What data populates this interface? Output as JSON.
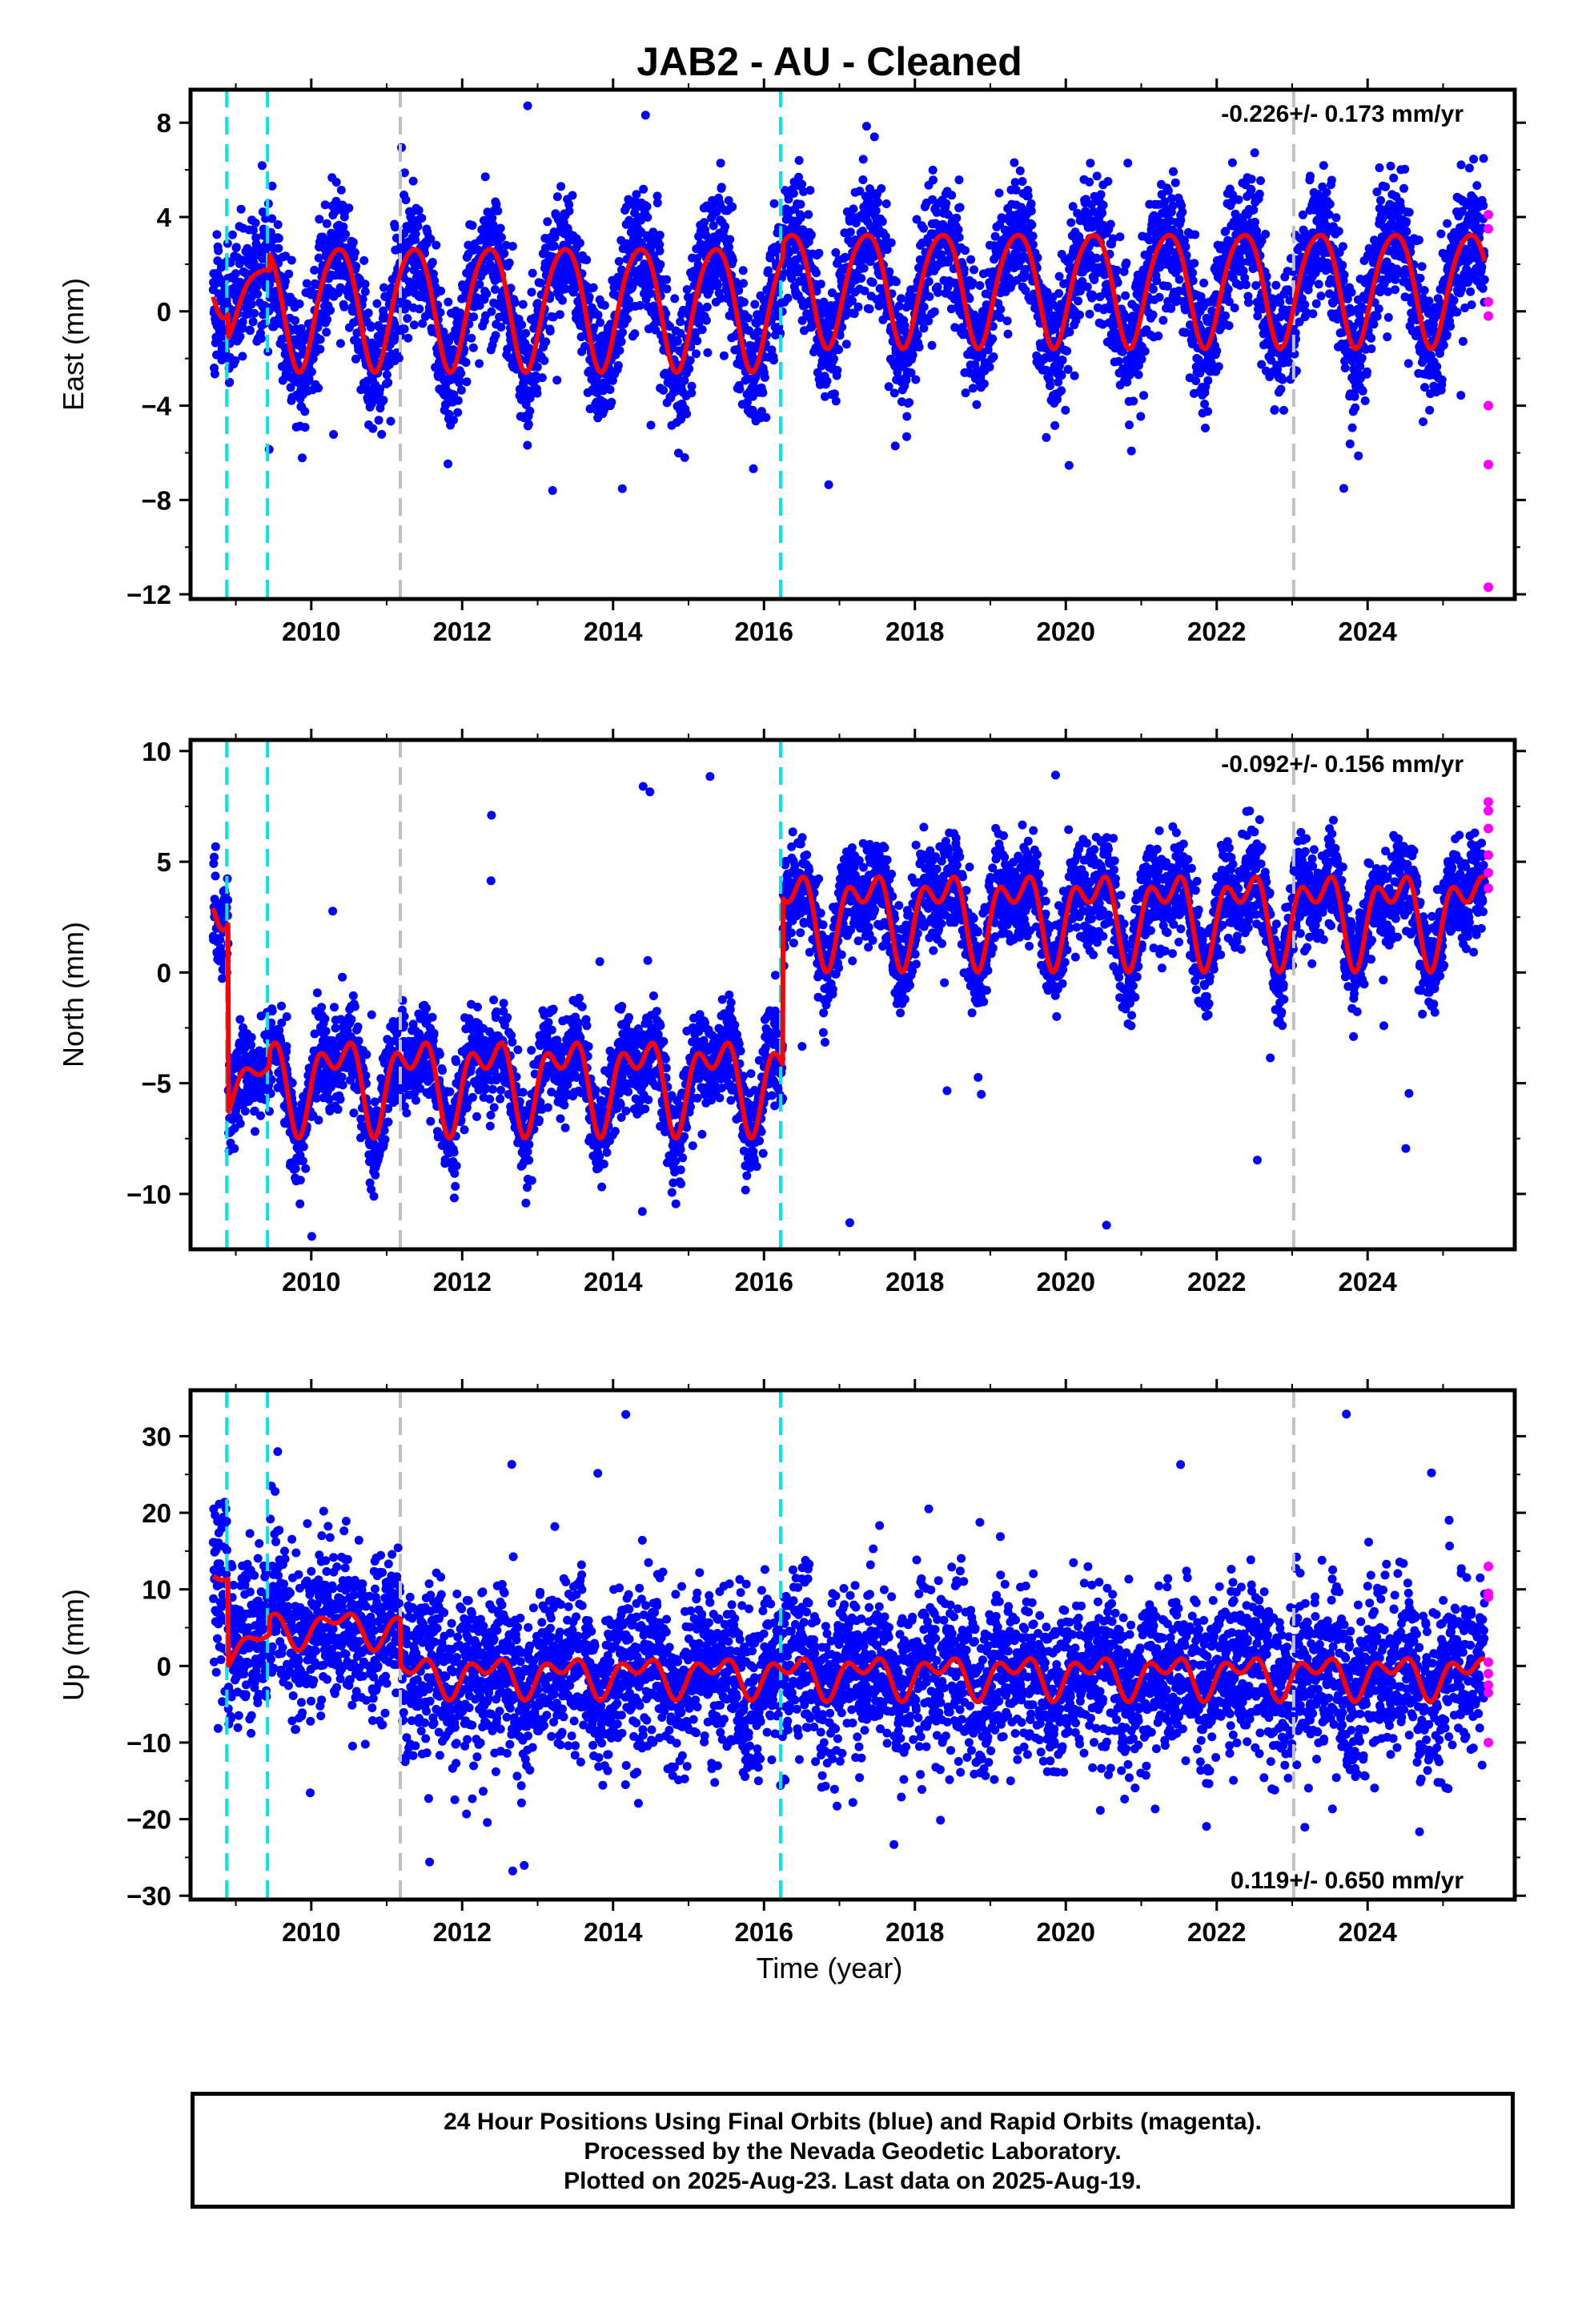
{
  "title": "JAB2  - AU - Cleaned",
  "xlabel": "Time (year)",
  "caption": {
    "line1": "24 Hour Positions Using Final Orbits (blue) and Rapid Orbits (magenta).",
    "line2": "Processed by the Nevada Geodetic Laboratory.",
    "line3": "Plotted on 2025-Aug-23. Last data on 2025-Aug-19."
  },
  "colors": {
    "final_orbits": "#0000ff",
    "rapid_orbits": "#ff00ff",
    "model": "#ff0000",
    "equipment_change": "#00e5ee",
    "earthquake": "#c0c0c0",
    "frame": "#000000"
  },
  "chart_data": [
    {
      "type": "scatter",
      "panel": "east",
      "ylabel": "East (mm)",
      "rate_label": "-0.226+/- 0.173 mm/yr",
      "xlim": [
        2008.4,
        2025.95
      ],
      "ylim": [
        -12.2,
        9.4
      ],
      "yticks": [
        8,
        4,
        0,
        -4,
        -8,
        -12
      ],
      "xticks": [
        2010,
        2012,
        2014,
        2016,
        2018,
        2020,
        2022,
        2024
      ],
      "series": [
        {
          "role": "final-orbits",
          "start": 2008.7,
          "end": 2025.55,
          "n_points": 5200,
          "scatter_sd": 1.35,
          "outlier_range": [
            -8,
            9
          ]
        },
        {
          "role": "rapid-orbits",
          "points": [
            [
              2025.6,
              4.1
            ],
            [
              2025.6,
              3.5
            ],
            [
              2025.6,
              0.4
            ],
            [
              2025.6,
              -0.2
            ],
            [
              2025.6,
              -4.0
            ],
            [
              2025.6,
              -6.5
            ],
            [
              2025.6,
              -11.7
            ]
          ]
        }
      ],
      "model": {
        "breakpoints": [
          2008.9,
          2009.45,
          2016.25
        ],
        "segments": [
          {
            "from": 2008.7,
            "to": 2008.9,
            "offset": 1.5,
            "annual_amp": 1.5,
            "semiannual_amp": 0.3
          },
          {
            "from": 2008.9,
            "to": 2009.45,
            "offset": 0.5,
            "annual_amp": 1.5,
            "semiannual_amp": 0.3
          },
          {
            "from": 2009.45,
            "to": 2016.25,
            "offset": 0.3,
            "annual_amp": 2.6,
            "semiannual_amp": 0.3
          },
          {
            "from": 2016.25,
            "to": 2025.55,
            "offset": 1.1,
            "annual_amp": 2.4,
            "semiannual_amp": 0.3
          }
        ]
      },
      "vlines_equipment": [
        2008.88,
        2009.42,
        2016.22
      ],
      "vlines_earthquake": [
        2011.18,
        2023.02
      ]
    },
    {
      "type": "scatter",
      "panel": "north",
      "ylabel": "North (mm)",
      "rate_label": "-0.092+/- 0.156 mm/yr",
      "xlim": [
        2008.4,
        2025.95
      ],
      "ylim": [
        -12.5,
        10.5
      ],
      "yticks": [
        10,
        5,
        0,
        -5,
        -10
      ],
      "xticks": [
        2010,
        2012,
        2014,
        2016,
        2018,
        2020,
        2022,
        2024
      ],
      "series": [
        {
          "role": "final-orbits",
          "start": 2008.7,
          "end": 2025.55,
          "n_points": 5200,
          "scatter_sd": 1.1,
          "outlier_range": [
            -12,
            9
          ]
        },
        {
          "role": "rapid-orbits",
          "points": [
            [
              2025.6,
              7.7
            ],
            [
              2025.6,
              7.3
            ],
            [
              2025.6,
              6.5
            ],
            [
              2025.6,
              5.3
            ],
            [
              2025.6,
              4.5
            ],
            [
              2025.6,
              3.8
            ]
          ]
        }
      ],
      "model": {
        "breakpoints": [
          2008.9,
          2009.45,
          2016.25
        ],
        "segments": [
          {
            "from": 2008.7,
            "to": 2008.9,
            "offset": 3.5,
            "annual_amp": 1.0,
            "semiannual_amp": 0.6
          },
          {
            "from": 2008.9,
            "to": 2009.45,
            "offset": -5.0,
            "annual_amp": 1.0,
            "semiannual_amp": 0.6
          },
          {
            "from": 2009.45,
            "to": 2016.25,
            "offset": -4.8,
            "annual_amp": 1.6,
            "semiannual_amp": 1.1
          },
          {
            "from": 2016.25,
            "to": 2025.55,
            "offset": 2.7,
            "annual_amp": 1.6,
            "semiannual_amp": 1.1
          }
        ]
      },
      "vlines_equipment": [
        2008.88,
        2009.42,
        2016.22
      ],
      "vlines_earthquake": [
        2011.18,
        2023.02
      ]
    },
    {
      "type": "scatter",
      "panel": "up",
      "ylabel": "Up (mm)",
      "rate_label": "0.119+/- 0.650 mm/yr",
      "xlim": [
        2008.4,
        2025.95
      ],
      "ylim": [
        -30.5,
        36
      ],
      "yticks": [
        30,
        20,
        10,
        0,
        -10,
        -20,
        -30
      ],
      "xticks": [
        2010,
        2012,
        2014,
        2016,
        2018,
        2020,
        2022,
        2024
      ],
      "series": [
        {
          "role": "final-orbits",
          "start": 2008.7,
          "end": 2025.55,
          "n_points": 5200,
          "scatter_sd": 5.5,
          "outlier_range": [
            -27,
            34
          ]
        },
        {
          "role": "rapid-orbits",
          "points": [
            [
              2025.6,
              13.0
            ],
            [
              2025.6,
              9.5
            ],
            [
              2025.6,
              9.0
            ],
            [
              2025.6,
              0.5
            ],
            [
              2025.6,
              -1.0
            ],
            [
              2025.6,
              -2.5
            ],
            [
              2025.6,
              -3.5
            ],
            [
              2025.6,
              -10.0
            ]
          ]
        }
      ],
      "model": {
        "breakpoints": [
          2008.9,
          2009.45,
          2011.18,
          2016.25
        ],
        "segments": [
          {
            "from": 2008.7,
            "to": 2008.9,
            "offset": 12.0,
            "annual_amp": 0.5,
            "semiannual_amp": 0.3
          },
          {
            "from": 2008.9,
            "to": 2009.45,
            "offset": 2.5,
            "annual_amp": 2.0,
            "semiannual_amp": 1.0
          },
          {
            "from": 2009.45,
            "to": 2011.18,
            "offset": 5.0,
            "annual_amp": 1.8,
            "semiannual_amp": 1.2
          },
          {
            "from": 2011.18,
            "to": 2016.25,
            "offset": -1.2,
            "annual_amp": 1.8,
            "semiannual_amp": 1.5
          },
          {
            "from": 2016.25,
            "to": 2025.55,
            "offset": -1.2,
            "annual_amp": 1.9,
            "semiannual_amp": 1.6
          }
        ]
      },
      "vlines_equipment": [
        2008.88,
        2009.42,
        2016.22
      ],
      "vlines_earthquake": [
        2011.18,
        2023.02
      ]
    }
  ]
}
